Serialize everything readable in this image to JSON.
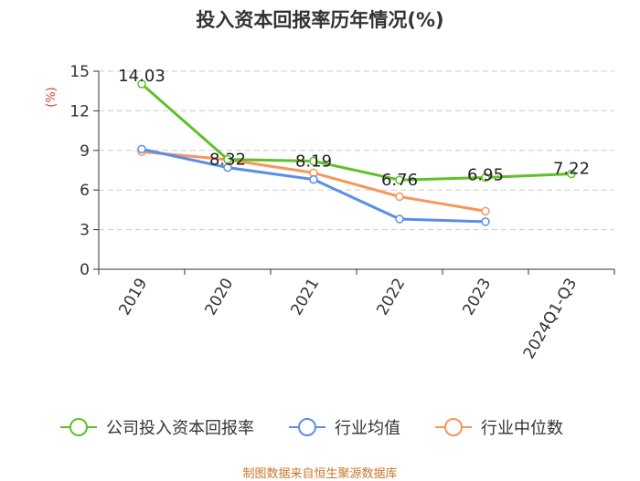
{
  "chart_data": {
    "type": "line",
    "title": "投入资本回报率历年情况(%)",
    "ylabel": "(%)",
    "ylim": [
      0,
      15
    ],
    "yticks": [
      0,
      3,
      6,
      9,
      12,
      15
    ],
    "categories": [
      "2019",
      "2020",
      "2021",
      "2022",
      "2023",
      "2024Q1-Q3"
    ],
    "grid": true,
    "legend_position": "bottom",
    "series": [
      {
        "name": "公司投入资本回报率",
        "color": "#5ec02a",
        "values": [
          14.03,
          8.32,
          8.19,
          6.76,
          6.95,
          7.22
        ],
        "labels": [
          "14.03",
          "8.32",
          "8.19",
          "6.76",
          "6.95",
          "7.22"
        ]
      },
      {
        "name": "行业均值",
        "color": "#5b8ee6",
        "values": [
          9.1,
          7.7,
          6.8,
          3.8,
          3.6,
          null
        ]
      },
      {
        "name": "行业中位数",
        "color": "#f7955b",
        "values": [
          8.9,
          8.3,
          7.3,
          5.5,
          4.4,
          null
        ]
      }
    ]
  },
  "source_note": "制图数据来自恒生聚源数据库"
}
